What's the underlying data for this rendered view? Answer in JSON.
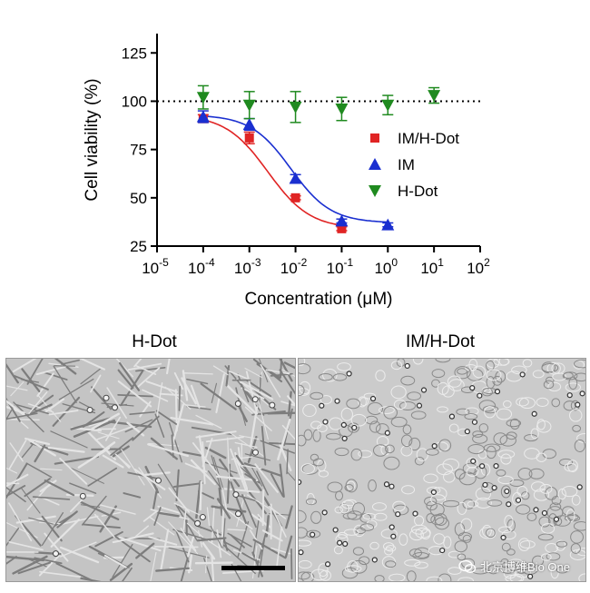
{
  "chart_data": {
    "type": "scatter",
    "xlabel": "Concentration (μM)",
    "ylabel": "Cell viability (%)",
    "xscale": "log",
    "xlim": [
      -5,
      2
    ],
    "ylim": [
      25,
      135
    ],
    "yticks": [
      25,
      50,
      75,
      100,
      125
    ],
    "xticks": [
      -5,
      -4,
      -3,
      -2,
      -1,
      0,
      1,
      2
    ],
    "reference_line": 100,
    "legend_position": "right",
    "series": [
      {
        "name": "IM/H-Dot",
        "color": "#e02424",
        "marker": "square",
        "x": [
          0.0001,
          0.001,
          0.01,
          0.1
        ],
        "y": [
          91,
          81,
          50,
          34
        ],
        "err": [
          2,
          3,
          1,
          1
        ],
        "fit": {
          "top": 93,
          "bottom": 34,
          "logec50": -2.6,
          "hill": 0.95
        }
      },
      {
        "name": "IM",
        "color": "#1a2fd0",
        "marker": "triangle-up",
        "x": [
          0.0001,
          0.001,
          0.01,
          0.1,
          1
        ],
        "y": [
          92,
          88,
          60,
          38,
          36
        ],
        "err": [
          3,
          3,
          2,
          1,
          1
        ],
        "fit": {
          "top": 93,
          "bottom": 37,
          "logec50": -2.1,
          "hill": 1.0
        }
      },
      {
        "name": "H-Dot",
        "color": "#1f8a1f",
        "marker": "triangle-down",
        "x": [
          0.0001,
          0.001,
          0.01,
          0.1,
          1,
          10
        ],
        "y": [
          102,
          98,
          97,
          96,
          98,
          103
        ],
        "err": [
          6,
          7,
          8,
          6,
          5,
          4
        ]
      }
    ]
  },
  "panels": {
    "left_title": "H-Dot",
    "right_title": "IM/H-Dot"
  },
  "watermark": {
    "text": "北京博维Bio One",
    "icon": "wechat-icon"
  }
}
